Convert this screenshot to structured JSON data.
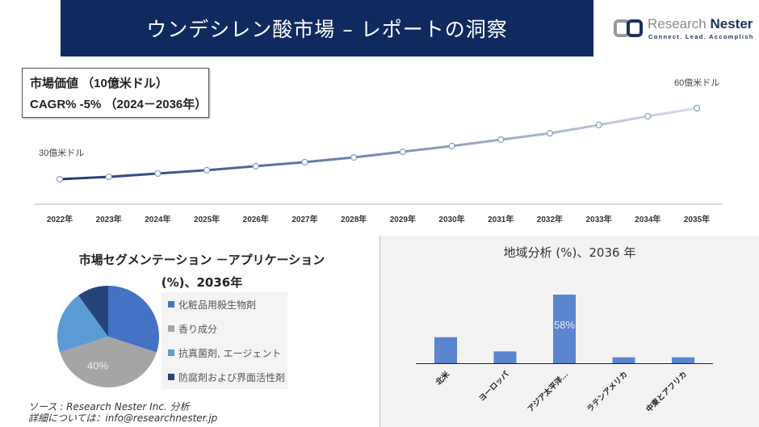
{
  "header": {
    "title": "ウンデシレン酸市場 – レポートの洞察"
  },
  "logo": {
    "name_light": "Research",
    "name_bold": "Nester",
    "tagline": "Connect. Lead. Accomplish"
  },
  "infobox": {
    "line1": "市場価値 （10億米ドル）",
    "line2": "CAGR% -5% （2024－2036年）"
  },
  "source": {
    "line1": "ソース : Research Nester Inc. 分析",
    "line2": "詳細については：info@researchnester.jp"
  },
  "chart_data": [
    {
      "type": "line",
      "categories": [
        "2022年",
        "2023年",
        "2024年",
        "2025年",
        "2026年",
        "2027年",
        "2028年",
        "2029年",
        "2030年",
        "2031年",
        "2032年",
        "2033年",
        "2034年",
        "2035年"
      ],
      "values": [
        30,
        31,
        32.4,
        33.8,
        35.5,
        37.2,
        39.2,
        41.6,
        44,
        46.7,
        49.4,
        52.9,
        56.6,
        60
      ],
      "annotations": [
        {
          "category": "2022年",
          "text": "30億米ドル"
        },
        {
          "category": "2035年",
          "text": "60億米ドル"
        }
      ],
      "colors": {
        "start": "#1f3a73",
        "end": "#d5dcef"
      }
    },
    {
      "type": "pie",
      "title": "市場セグメンテーション －アプリケーション (%)、2036年",
      "title_line1": "市場セグメンテーション －アプリケーション",
      "title_line2": "(%)、2036年",
      "slices": [
        {
          "label": "化粧品用殺生物剤",
          "value": 30,
          "color": "#4472c4"
        },
        {
          "label": "香り成分",
          "value": 40,
          "color": "#a5a5a5",
          "data_label": "40%"
        },
        {
          "label": "抗真菌剤, エージェント",
          "value": 20,
          "color": "#5b9bd5"
        },
        {
          "label": "防腐剤および界面活性剤",
          "value": 10,
          "color": "#264478"
        }
      ],
      "legend": "right"
    },
    {
      "type": "bar",
      "title": "地域分析 (%)、2036 年",
      "categories": [
        "北米",
        "ヨーロッパ",
        "アジア太平洋…",
        "ラテンアメリカ",
        "中東とアフリカ"
      ],
      "values": [
        22,
        10,
        58,
        5,
        5
      ],
      "data_labels": {
        "アジア太平洋…": "58%"
      },
      "color": "#5b84d1"
    }
  ]
}
